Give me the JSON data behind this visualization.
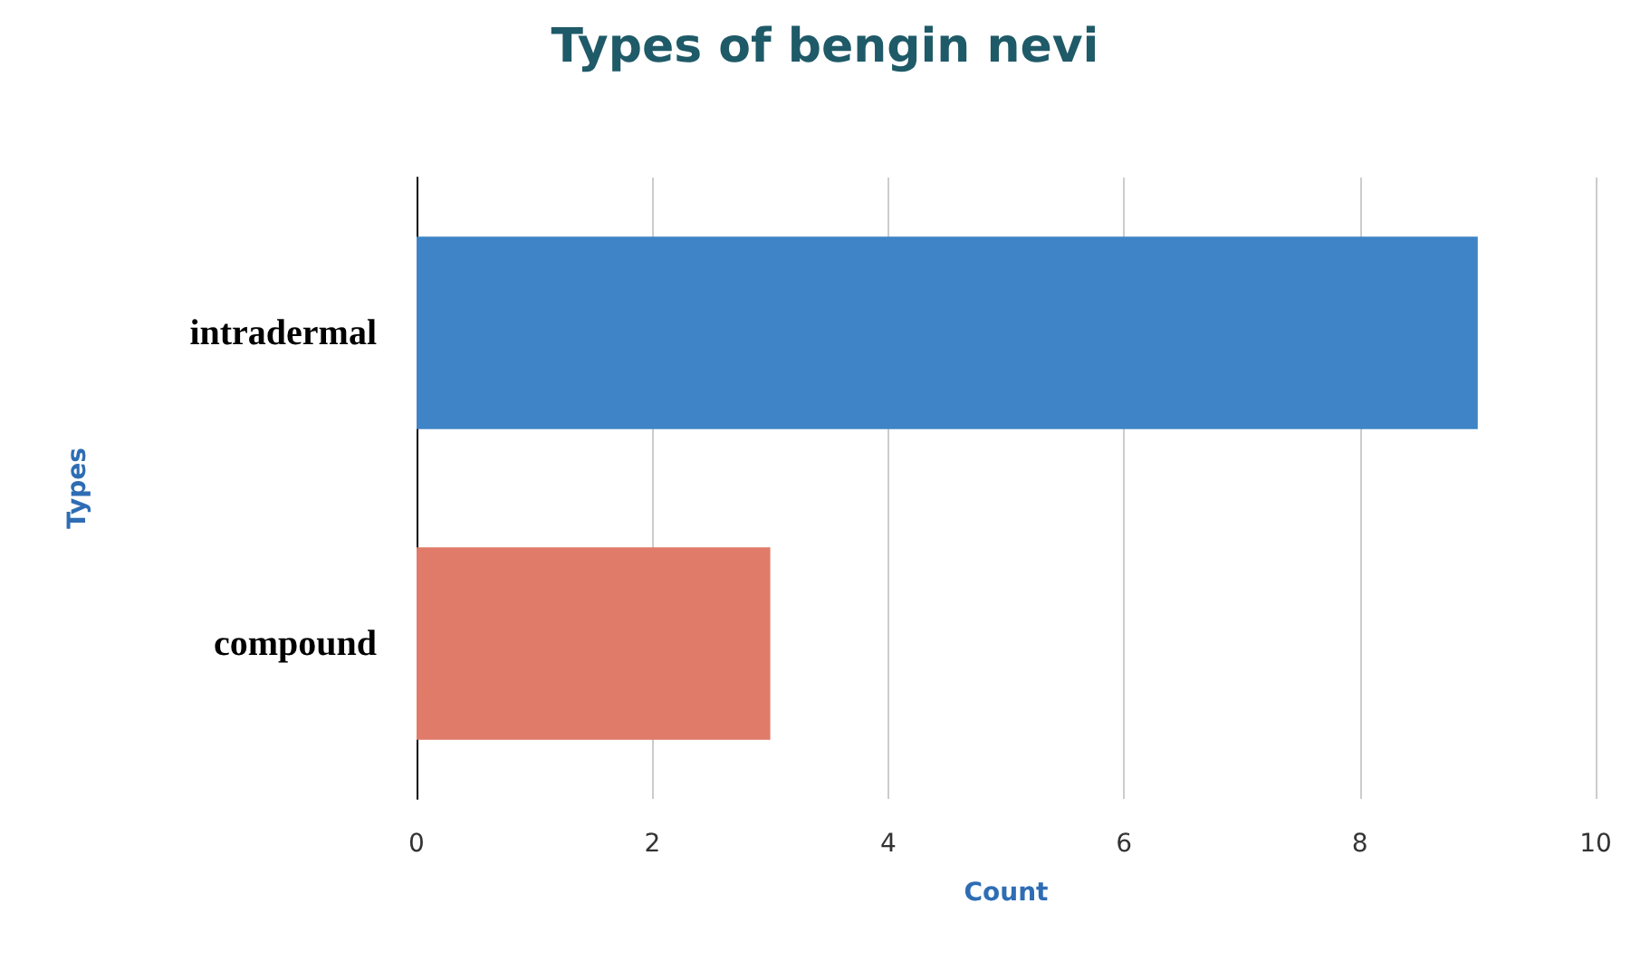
{
  "chart_data": {
    "type": "bar",
    "orientation": "horizontal",
    "title": "Types of bengin nevi",
    "xlabel": "Count",
    "ylabel": "Types",
    "categories": [
      "intradermal",
      "compound"
    ],
    "values": [
      9,
      3
    ],
    "colors": [
      "#3e84c6",
      "#e07b6a"
    ],
    "xlim": [
      0,
      10
    ],
    "xticks": [
      0,
      2,
      4,
      6,
      8,
      10
    ],
    "grid": "x"
  }
}
